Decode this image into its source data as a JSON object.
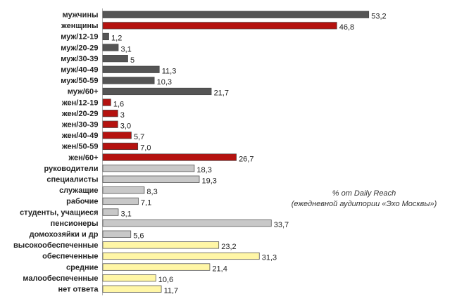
{
  "chart_data": {
    "type": "bar",
    "orientation": "horizontal",
    "title": "",
    "xlabel": "",
    "ylabel": "",
    "categories": [
      "мужчины",
      "женщины",
      "муж/12-19",
      "муж/20-29",
      "муж/30-39",
      "муж/40-49",
      "муж/50-59",
      "муж/60+",
      "жен/12-19",
      "жен/20-29",
      "жен/30-39",
      "жен/40-49",
      "жен/50-59",
      "жен/60+",
      "руководители",
      "специалисты",
      "служащие",
      "рабочие",
      "студенты, учащиеся",
      "пенсионеры",
      "домохозяйки и др",
      "высокообеспеченные",
      "обеспеченные",
      "средние",
      "малообеспеченные",
      "нет ответа"
    ],
    "values": [
      53.2,
      46.8,
      1.2,
      3.1,
      5,
      11.3,
      10.3,
      21.7,
      1.6,
      3,
      3.0,
      5.7,
      7.0,
      26.7,
      18.3,
      19.3,
      8.3,
      7.1,
      3.1,
      33.7,
      5.6,
      23.2,
      31.3,
      21.4,
      10.6,
      11.7
    ],
    "value_labels": [
      "53,2",
      "46,8",
      "1,2",
      "3,1",
      "5",
      "11,3",
      "10,3",
      "21,7",
      "1,6",
      "3",
      "3,0",
      "5,7",
      "7,0",
      "26,7",
      "18,3",
      "19,3",
      "8,3",
      "7,1",
      "3,1",
      "33,7",
      "5,6",
      "23,2",
      "31,3",
      "21,4",
      "10,6",
      "11,7"
    ],
    "groups": [
      "men",
      "women",
      "men",
      "men",
      "men",
      "men",
      "men",
      "men",
      "women",
      "women",
      "women",
      "women",
      "women",
      "women",
      "occupation",
      "occupation",
      "occupation",
      "occupation",
      "occupation",
      "occupation",
      "occupation",
      "income",
      "income",
      "income",
      "income",
      "income"
    ],
    "group_colors": {
      "men": "#555555",
      "women": "#b5120f",
      "occupation": "#c8c8c8",
      "income": "#fff6a6"
    },
    "xlim": [
      0,
      58
    ],
    "grid": false,
    "legend": "none"
  },
  "note": {
    "line1": "% от Daily Reach",
    "line2": "(ежедневной аудитории «Эхо Москвы»)"
  }
}
